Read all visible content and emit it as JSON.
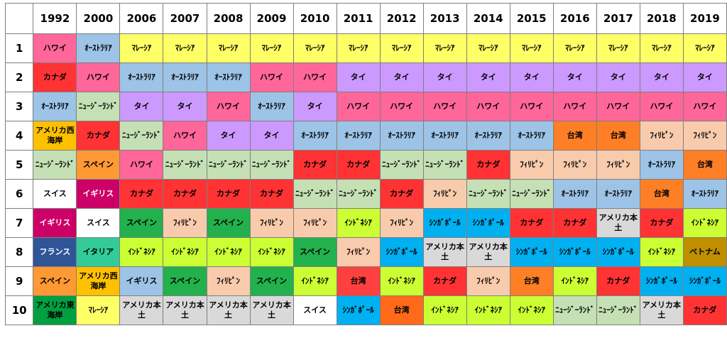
{
  "table": {
    "columns": [
      "1992",
      "2000",
      "2006",
      "2007",
      "2008",
      "2009",
      "2010",
      "2011",
      "2012",
      "2013",
      "2014",
      "2015",
      "2016",
      "2017",
      "2018",
      "2019"
    ],
    "rows": [
      {
        "rank": "1",
        "cells": [
          "ハワイ",
          "ｵｰｽﾄﾗﾘｱ",
          "ﾏﾚｰｼｱ",
          "ﾏﾚｰｼｱ",
          "ﾏﾚｰｼｱ",
          "ﾏﾚｰｼｱ",
          "ﾏﾚｰｼｱ",
          "ﾏﾚｰｼｱ",
          "ﾏﾚｰｼｱ",
          "ﾏﾚｰｼｱ",
          "ﾏﾚｰｼｱ",
          "ﾏﾚｰｼｱ",
          "ﾏﾚｰｼｱ",
          "ﾏﾚｰｼｱ",
          "ﾏﾚｰｼｱ",
          "ﾏﾚｰｼｱ"
        ],
        "colors": [
          "#ff6699",
          "#9dc3e6",
          "#ffff66",
          "#ffff66",
          "#ffff66",
          "#ffff66",
          "#ffff66",
          "#ffff66",
          "#ffff66",
          "#ffff66",
          "#ffff66",
          "#ffff66",
          "#ffff66",
          "#ffff66",
          "#ffff66",
          "#ffff66"
        ]
      },
      {
        "rank": "2",
        "cells": [
          "カナダ",
          "ハワイ",
          "ｵｰｽﾄﾗﾘｱ",
          "ｵｰｽﾄﾗﾘｱ",
          "ｵｰｽﾄﾗﾘｱ",
          "ハワイ",
          "ハワイ",
          "タイ",
          "タイ",
          "タイ",
          "タイ",
          "タイ",
          "タイ",
          "タイ",
          "タイ",
          "タイ"
        ],
        "colors": [
          "#ff3333",
          "#ff6699",
          "#9dc3e6",
          "#9dc3e6",
          "#9dc3e6",
          "#ff6699",
          "#ff6699",
          "#cc99ff",
          "#cc99ff",
          "#cc99ff",
          "#cc99ff",
          "#cc99ff",
          "#cc99ff",
          "#cc99ff",
          "#cc99ff",
          "#cc99ff"
        ]
      },
      {
        "rank": "3",
        "cells": [
          "ｵｰｽﾄﾗﾘｱ",
          "ﾆｭｰｼﾞｰﾗﾝﾄﾞ",
          "タイ",
          "タイ",
          "ハワイ",
          "ｵｰｽﾄﾗﾘｱ",
          "タイ",
          "ハワイ",
          "ハワイ",
          "ハワイ",
          "ハワイ",
          "ハワイ",
          "ハワイ",
          "ハワイ",
          "ハワイ",
          "ハワイ"
        ],
        "colors": [
          "#9dc3e6",
          "#c5e0b4",
          "#cc99ff",
          "#cc99ff",
          "#ff6699",
          "#9dc3e6",
          "#cc99ff",
          "#ff6699",
          "#ff6699",
          "#ff6699",
          "#ff6699",
          "#ff6699",
          "#ff6699",
          "#ff6699",
          "#ff6699",
          "#ff6699"
        ]
      },
      {
        "rank": "4",
        "cells": [
          "アメリカ西海岸",
          "カナダ",
          "ﾆｭｰｼﾞｰﾗﾝﾄﾞ",
          "ハワイ",
          "タイ",
          "タイ",
          "ｵｰｽﾄﾗﾘｱ",
          "ｵｰｽﾄﾗﾘｱ",
          "ｵｰｽﾄﾗﾘｱ",
          "ｵｰｽﾄﾗﾘｱ",
          "ｵｰｽﾄﾗﾘｱ",
          "ｵｰｽﾄﾗﾘｱ",
          "台湾",
          "台湾",
          "ﾌｨﾘﾋﾟﾝ",
          "ﾌｨﾘﾋﾟﾝ"
        ],
        "colors": [
          "#ffc000",
          "#ff3333",
          "#c5e0b4",
          "#ff6699",
          "#cc99ff",
          "#cc99ff",
          "#9dc3e6",
          "#9dc3e6",
          "#9dc3e6",
          "#9dc3e6",
          "#9dc3e6",
          "#9dc3e6",
          "#ff7f27",
          "#ff7f27",
          "#f8cbad",
          "#f8cbad"
        ]
      },
      {
        "rank": "5",
        "cells": [
          "ﾆｭｰｼﾞｰﾗﾝﾄﾞ",
          "スペイン",
          "ハワイ",
          "ﾆｭｰｼﾞｰﾗﾝﾄﾞ",
          "ﾆｭｰｼﾞｰﾗﾝﾄﾞ",
          "ﾆｭｰｼﾞｰﾗﾝﾄﾞ",
          "カナダ",
          "カナダ",
          "ﾆｭｰｼﾞｰﾗﾝﾄﾞ",
          "ﾆｭｰｼﾞｰﾗﾝﾄﾞ",
          "カナダ",
          "ﾌｨﾘﾋﾟﾝ",
          "ﾌｨﾘﾋﾟﾝ",
          "ﾌｨﾘﾋﾟﾝ",
          "ｵｰｽﾄﾗﾘｱ",
          "台湾"
        ],
        "colors": [
          "#c5e0b4",
          "#ff9933",
          "#ff6699",
          "#c5e0b4",
          "#c5e0b4",
          "#c5e0b4",
          "#ff3333",
          "#ff3333",
          "#c5e0b4",
          "#c5e0b4",
          "#ff3333",
          "#f8cbad",
          "#f8cbad",
          "#f8cbad",
          "#9dc3e6",
          "#ff7f27"
        ]
      },
      {
        "rank": "6",
        "cells": [
          "スイス",
          "イギリス",
          "カナダ",
          "カナダ",
          "カナダ",
          "カナダ",
          "ﾆｭｰｼﾞｰﾗﾝﾄﾞ",
          "ﾆｭｰｼﾞｰﾗﾝﾄﾞ",
          "カナダ",
          "ﾌｨﾘﾋﾟﾝ",
          "ﾆｭｰｼﾞｰﾗﾝﾄﾞ",
          "ﾆｭｰｼﾞｰﾗﾝﾄﾞ",
          "ｵｰｽﾄﾗﾘｱ",
          "ｵｰｽﾄﾗﾘｱ",
          "台湾",
          "ｵｰｽﾄﾗﾘｱ"
        ],
        "colors": [
          "#ffffff",
          "#cc0066",
          "#ff3333",
          "#ff3333",
          "#ff3333",
          "#ff3333",
          "#c5e0b4",
          "#c5e0b4",
          "#ff3333",
          "#f8cbad",
          "#c5e0b4",
          "#c5e0b4",
          "#9dc3e6",
          "#9dc3e6",
          "#ff7f27",
          "#9dc3e6"
        ]
      },
      {
        "rank": "7",
        "cells": [
          "イギリス",
          "スイス",
          "スペイン",
          "ﾌｨﾘﾋﾟﾝ",
          "スペイン",
          "ﾌｨﾘﾋﾟﾝ",
          "ﾌｨﾘﾋﾟﾝ",
          "ｲﾝﾄﾞﾈｼｱ",
          "ﾌｨﾘﾋﾟﾝ",
          "ｼﾝｶﾞﾎﾟｰﾙ",
          "ｼﾝｶﾞﾎﾟｰﾙ",
          "カナダ",
          "カナダ",
          "アメリカ本土",
          "カナダ",
          "ｲﾝﾄﾞﾈｼｱ"
        ],
        "colors": [
          "#cc0066",
          "#ffffff",
          "#22b14c",
          "#f8cbad",
          "#22b14c",
          "#f8cbad",
          "#f8cbad",
          "#ccff33",
          "#f8cbad",
          "#00b0f0",
          "#00b0f0",
          "#ff3333",
          "#ff3333",
          "#d9d9d9",
          "#ff3333",
          "#ccff33"
        ]
      },
      {
        "rank": "8",
        "cells": [
          "フランス",
          "イタリア",
          "ｲﾝﾄﾞﾈｼｱ",
          "ｲﾝﾄﾞﾈｼｱ",
          "ｲﾝﾄﾞﾈｼｱ",
          "ｲﾝﾄﾞﾈｼｱ",
          "スペイン",
          "ﾌｨﾘﾋﾟﾝ",
          "ｼﾝｶﾞﾎﾟｰﾙ",
          "アメリカ本土",
          "アメリカ本土",
          "ｼﾝｶﾞﾎﾟｰﾙ",
          "ｼﾝｶﾞﾎﾟｰﾙ",
          "ｼﾝｶﾞﾎﾟｰﾙ",
          "ｲﾝﾄﾞﾈｼｱ",
          "ベトナム"
        ],
        "colors": [
          "#2f5597",
          "#33cc99",
          "#ccff33",
          "#ccff33",
          "#ccff33",
          "#ccff33",
          "#22b14c",
          "#f8cbad",
          "#00b0f0",
          "#d9d9d9",
          "#d9d9d9",
          "#00b0f0",
          "#00b0f0",
          "#00b0f0",
          "#ccff33",
          "#bf8f00"
        ]
      },
      {
        "rank": "9",
        "cells": [
          "スペイン",
          "アメリカ西海岸",
          "イギリス",
          "スペイン",
          "ﾌｨﾘﾋﾟﾝ",
          "スペイン",
          "ｲﾝﾄﾞﾈｼｱ",
          "台湾",
          "ｲﾝﾄﾞﾈｼｱ",
          "カナダ",
          "ﾌｨﾘﾋﾟﾝ",
          "台湾",
          "ｲﾝﾄﾞﾈｼｱ",
          "カナダ",
          "ｼﾝｶﾞﾎﾟｰﾙ",
          "ｼﾝｶﾞﾎﾟｰﾙ"
        ],
        "colors": [
          "#ff9933",
          "#ffc000",
          "#9dc3e6",
          "#22b14c",
          "#f8cbad",
          "#22b14c",
          "#ccff33",
          "#ff4040",
          "#ccff33",
          "#ff3333",
          "#f8cbad",
          "#ff7f27",
          "#ccff33",
          "#ff3333",
          "#00b0f0",
          "#00b0f0"
        ]
      },
      {
        "rank": "10",
        "cells": [
          "アメリカ東海岸",
          "ﾏﾚｰｼｱ",
          "アメリカ本土",
          "アメリカ本土",
          "アメリカ本土",
          "アメリカ本土",
          "スイス",
          "ｼﾝｶﾞﾎﾟｰﾙ",
          "台湾",
          "ｲﾝﾄﾞﾈｼｱ",
          "ｲﾝﾄﾞﾈｼｱ",
          "ｲﾝﾄﾞﾈｼｱ",
          "ﾆｭｰｼﾞｰﾗﾝﾄﾞ",
          "ﾆｭｰｼﾞｰﾗﾝﾄﾞ",
          "アメリカ本土",
          "カナダ"
        ],
        "colors": [
          "#00a040",
          "#ffff66",
          "#d9d9d9",
          "#d9d9d9",
          "#d9d9d9",
          "#d9d9d9",
          "#ffffff",
          "#00b0f0",
          "#ff6a1a",
          "#ccff33",
          "#ccff33",
          "#ccff33",
          "#c5e0b4",
          "#c5e0b4",
          "#d9d9d9",
          "#ff3333"
        ]
      }
    ]
  }
}
